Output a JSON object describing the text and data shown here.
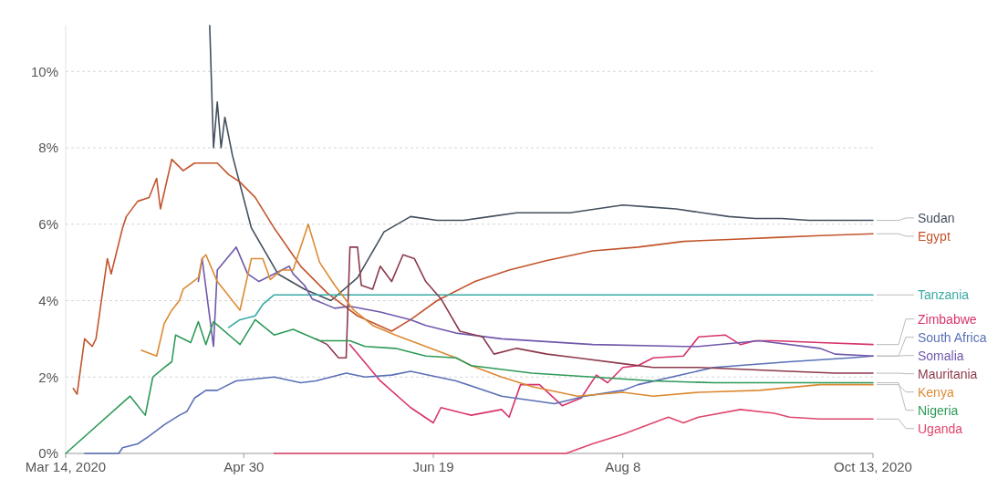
{
  "chart_data": {
    "type": "line",
    "xlim": [
      "2020-03-14",
      "2020-10-13"
    ],
    "xticks": [
      {
        "value": "2020-03-14",
        "label": "Mar 14, 2020"
      },
      {
        "value": "2020-04-30",
        "label": "Apr 30"
      },
      {
        "value": "2020-06-19",
        "label": "Jun 19"
      },
      {
        "value": "2020-08-08",
        "label": "Aug 8"
      },
      {
        "value": "2020-10-13",
        "label": "Oct 13, 2020"
      }
    ],
    "ylim": [
      0,
      11.2
    ],
    "yticks": [
      {
        "value": 0,
        "label": "0%"
      },
      {
        "value": 2,
        "label": "2%"
      },
      {
        "value": 4,
        "label": "4%"
      },
      {
        "value": 6,
        "label": "6%"
      },
      {
        "value": 8,
        "label": "8%"
      },
      {
        "value": 10,
        "label": "10%"
      }
    ],
    "grid": "y",
    "series": [
      {
        "name": "Sudan",
        "color": "#44505f",
        "x": [
          "2020-04-21",
          "2020-04-22",
          "2020-04-23",
          "2020-04-24",
          "2020-04-25",
          "2020-04-27",
          "2020-05-02",
          "2020-05-09",
          "2020-05-16",
          "2020-05-23",
          "2020-05-30",
          "2020-06-06",
          "2020-06-13",
          "2020-06-20",
          "2020-06-27",
          "2020-07-04",
          "2020-07-11",
          "2020-07-18",
          "2020-07-25",
          "2020-08-01",
          "2020-08-08",
          "2020-08-15",
          "2020-08-22",
          "2020-08-29",
          "2020-09-05",
          "2020-09-12",
          "2020-09-19",
          "2020-09-26",
          "2020-10-03",
          "2020-10-13"
        ],
        "values": [
          11.2,
          8.0,
          9.2,
          8.0,
          8.8,
          7.8,
          5.9,
          4.7,
          4.3,
          4.0,
          4.6,
          5.8,
          6.2,
          6.1,
          6.1,
          6.2,
          6.3,
          6.3,
          6.3,
          6.4,
          6.5,
          6.45,
          6.4,
          6.3,
          6.2,
          6.15,
          6.15,
          6.1,
          6.1,
          6.1
        ]
      },
      {
        "name": "Egypt",
        "color": "#c2542c",
        "x": [
          "2020-03-16",
          "2020-03-17",
          "2020-03-19",
          "2020-03-21",
          "2020-03-22",
          "2020-03-25",
          "2020-03-26",
          "2020-03-29",
          "2020-03-30",
          "2020-04-02",
          "2020-04-05",
          "2020-04-07",
          "2020-04-08",
          "2020-04-11",
          "2020-04-14",
          "2020-04-17",
          "2020-04-23",
          "2020-04-26",
          "2020-04-29",
          "2020-05-03",
          "2020-05-08",
          "2020-05-15",
          "2020-05-22",
          "2020-05-30",
          "2020-06-08",
          "2020-06-13",
          "2020-06-20",
          "2020-06-30",
          "2020-07-09",
          "2020-07-19",
          "2020-07-31",
          "2020-08-12",
          "2020-08-24",
          "2020-09-05",
          "2020-09-17",
          "2020-09-29",
          "2020-10-13"
        ],
        "values": [
          1.7,
          1.55,
          3.0,
          2.8,
          3.0,
          5.1,
          4.7,
          5.9,
          6.2,
          6.6,
          6.7,
          7.2,
          6.4,
          7.7,
          7.4,
          7.6,
          7.6,
          7.3,
          7.1,
          6.7,
          5.9,
          4.9,
          4.2,
          3.6,
          3.2,
          3.5,
          4.0,
          4.5,
          4.8,
          5.05,
          5.3,
          5.4,
          5.55,
          5.6,
          5.65,
          5.7,
          5.75
        ]
      },
      {
        "name": "Tanzania",
        "color": "#38aaa5",
        "x": [
          "2020-04-26",
          "2020-04-29",
          "2020-05-03",
          "2020-05-05",
          "2020-05-08",
          "2020-10-13"
        ],
        "values": [
          3.3,
          3.5,
          3.6,
          3.9,
          4.15,
          4.15
        ]
      },
      {
        "name": "Zimbabwe",
        "color": "#d6336c",
        "x": [
          "2020-05-28",
          "2020-06-05",
          "2020-06-13",
          "2020-06-19",
          "2020-06-21",
          "2020-06-25",
          "2020-06-29",
          "2020-07-07",
          "2020-07-09",
          "2020-07-12",
          "2020-07-17",
          "2020-07-23",
          "2020-07-28",
          "2020-08-01",
          "2020-08-04",
          "2020-08-08",
          "2020-08-12",
          "2020-08-16",
          "2020-08-24",
          "2020-08-28",
          "2020-09-04",
          "2020-09-08",
          "2020-09-12",
          "2020-09-17",
          "2020-09-29",
          "2020-10-13"
        ],
        "values": [
          2.85,
          1.9,
          1.2,
          0.8,
          1.2,
          1.1,
          1.0,
          1.15,
          0.95,
          1.8,
          1.8,
          1.25,
          1.45,
          2.05,
          1.85,
          2.25,
          2.3,
          2.5,
          2.55,
          3.05,
          3.1,
          2.85,
          2.95,
          2.95,
          2.9,
          2.85
        ]
      },
      {
        "name": "South Africa",
        "color": "#5a70b6",
        "x": [
          "2020-03-19",
          "2020-03-28",
          "2020-03-29",
          "2020-04-02",
          "2020-04-05",
          "2020-04-09",
          "2020-04-13",
          "2020-04-15",
          "2020-04-17",
          "2020-04-20",
          "2020-04-23",
          "2020-04-28",
          "2020-05-08",
          "2020-05-15",
          "2020-05-19",
          "2020-05-27",
          "2020-06-01",
          "2020-06-08",
          "2020-06-13",
          "2020-06-25",
          "2020-07-07",
          "2020-07-21",
          "2020-07-29",
          "2020-08-08",
          "2020-08-12",
          "2020-09-01",
          "2020-09-21",
          "2020-10-07",
          "2020-10-13"
        ],
        "values": [
          0,
          0,
          0.15,
          0.25,
          0.45,
          0.75,
          1.0,
          1.1,
          1.45,
          1.65,
          1.65,
          1.9,
          2.0,
          1.85,
          1.9,
          2.1,
          2.0,
          2.05,
          2.15,
          1.9,
          1.5,
          1.3,
          1.5,
          1.65,
          1.8,
          2.25,
          2.4,
          2.5,
          2.55
        ]
      },
      {
        "name": "Somalia",
        "color": "#7058ab",
        "x": [
          "2020-04-18",
          "2020-04-19",
          "2020-04-22",
          "2020-04-23",
          "2020-04-28",
          "2020-05-01",
          "2020-05-04",
          "2020-05-08",
          "2020-05-12",
          "2020-05-13",
          "2020-05-16",
          "2020-05-18",
          "2020-05-24",
          "2020-05-28",
          "2020-06-05",
          "2020-06-13",
          "2020-06-17",
          "2020-06-25",
          "2020-07-07",
          "2020-07-31",
          "2020-08-24",
          "2020-08-28",
          "2020-09-13",
          "2020-09-29",
          "2020-10-03",
          "2020-10-13"
        ],
        "values": [
          4.5,
          5.1,
          2.8,
          4.8,
          5.4,
          4.7,
          4.5,
          4.7,
          4.9,
          4.7,
          4.4,
          4.05,
          3.8,
          3.85,
          3.7,
          3.5,
          3.35,
          3.15,
          3.0,
          2.85,
          2.8,
          2.8,
          2.95,
          2.75,
          2.6,
          2.55
        ]
      },
      {
        "name": "Mauritania",
        "color": "#8c3a4c",
        "x": [
          "2020-05-19",
          "2020-05-22",
          "2020-05-25",
          "2020-05-27",
          "2020-05-28",
          "2020-05-30",
          "2020-05-31",
          "2020-06-03",
          "2020-06-05",
          "2020-06-08",
          "2020-06-11",
          "2020-06-14",
          "2020-06-17",
          "2020-06-21",
          "2020-06-26",
          "2020-07-02",
          "2020-07-05",
          "2020-07-11",
          "2020-07-19",
          "2020-07-27",
          "2020-08-08",
          "2020-08-16",
          "2020-08-28",
          "2020-09-21",
          "2020-10-03",
          "2020-10-13"
        ],
        "values": [
          3.0,
          2.85,
          2.5,
          2.5,
          5.4,
          5.4,
          4.4,
          4.3,
          4.9,
          4.5,
          5.2,
          5.1,
          4.5,
          4.05,
          3.2,
          3.05,
          2.6,
          2.75,
          2.6,
          2.5,
          2.35,
          2.25,
          2.25,
          2.15,
          2.1,
          2.1
        ]
      },
      {
        "name": "Kenya",
        "color": "#dc8a32",
        "x": [
          "2020-04-03",
          "2020-04-07",
          "2020-04-09",
          "2020-04-11",
          "2020-04-13",
          "2020-04-14",
          "2020-04-18",
          "2020-04-19",
          "2020-04-20",
          "2020-04-23",
          "2020-04-29",
          "2020-05-02",
          "2020-05-05",
          "2020-05-07",
          "2020-05-10",
          "2020-05-13",
          "2020-05-17",
          "2020-05-20",
          "2020-05-24",
          "2020-05-29",
          "2020-06-03",
          "2020-06-09",
          "2020-06-17",
          "2020-06-25",
          "2020-06-29",
          "2020-07-07",
          "2020-07-15",
          "2020-07-27",
          "2020-08-08",
          "2020-08-16",
          "2020-08-28",
          "2020-09-13",
          "2020-09-29",
          "2020-10-13"
        ],
        "values": [
          2.7,
          2.55,
          3.4,
          3.75,
          4.0,
          4.3,
          4.6,
          5.1,
          5.2,
          4.5,
          3.75,
          5.1,
          5.1,
          4.55,
          4.8,
          4.8,
          6.0,
          5.0,
          4.4,
          3.75,
          3.35,
          3.1,
          2.8,
          2.5,
          2.3,
          2.0,
          1.75,
          1.5,
          1.6,
          1.5,
          1.6,
          1.65,
          1.8,
          1.8
        ]
      },
      {
        "name": "Nigeria",
        "color": "#2e9a58",
        "x": [
          "2020-03-14",
          "2020-03-31",
          "2020-04-04",
          "2020-04-06",
          "2020-04-09",
          "2020-04-11",
          "2020-04-12",
          "2020-04-16",
          "2020-04-18",
          "2020-04-20",
          "2020-04-22",
          "2020-04-29",
          "2020-05-03",
          "2020-05-08",
          "2020-05-13",
          "2020-05-20",
          "2020-05-28",
          "2020-06-01",
          "2020-06-09",
          "2020-06-17",
          "2020-06-25",
          "2020-06-29",
          "2020-07-15",
          "2020-07-31",
          "2020-08-16",
          "2020-09-01",
          "2020-09-21",
          "2020-10-13"
        ],
        "values": [
          0,
          1.5,
          1.0,
          2.0,
          2.25,
          2.4,
          3.1,
          2.9,
          3.45,
          2.85,
          3.45,
          2.85,
          3.5,
          3.1,
          3.25,
          2.95,
          2.95,
          2.8,
          2.75,
          2.55,
          2.5,
          2.3,
          2.1,
          2.0,
          1.9,
          1.85,
          1.85,
          1.85
        ]
      },
      {
        "name": "Uganda",
        "color": "#e0466b",
        "x": [
          "2020-05-08",
          "2020-07-24",
          "2020-07-31",
          "2020-08-08",
          "2020-08-12",
          "2020-08-16",
          "2020-08-20",
          "2020-08-24",
          "2020-08-28",
          "2020-09-08",
          "2020-09-17",
          "2020-09-21",
          "2020-09-29",
          "2020-10-13"
        ],
        "values": [
          0,
          0,
          0.25,
          0.5,
          0.65,
          0.8,
          0.95,
          0.8,
          0.95,
          1.15,
          1.05,
          0.95,
          0.9,
          0.9
        ]
      }
    ]
  }
}
